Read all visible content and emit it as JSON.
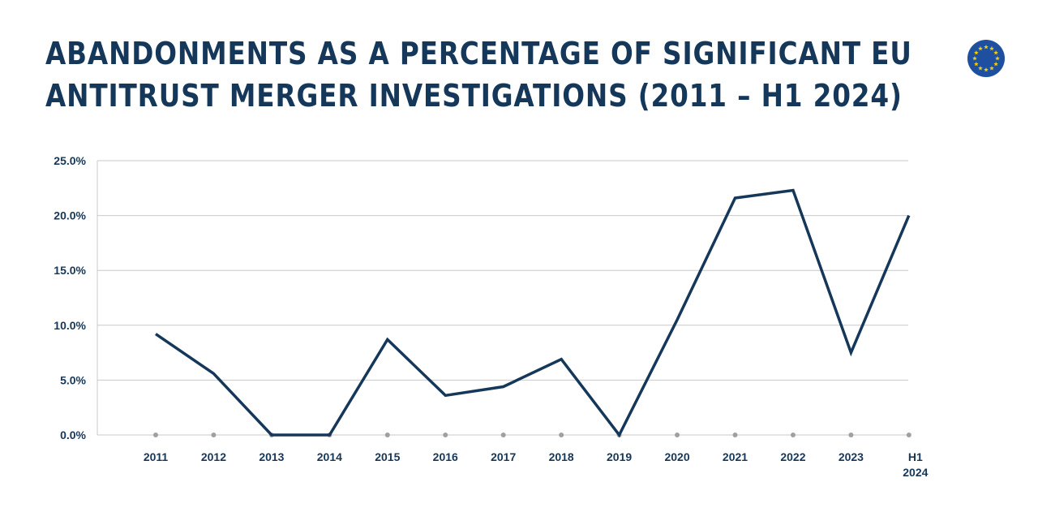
{
  "title": {
    "line1": "ABANDONMENTS AS A PERCENTAGE OF SIGNIFICANT EU",
    "line2": "ANTITRUST MERGER INVESTIGATIONS (2011 – H1 2024)"
  },
  "logo": {
    "icon": "eu-flag-icon",
    "color": "#1f4fa0",
    "star_color": "#f5d000"
  },
  "colors": {
    "line": "#15375a",
    "grid": "#c9c9c9",
    "text": "#15375a",
    "marker": "#a0a0a0"
  },
  "chart_data": {
    "type": "line",
    "categories": [
      "2011",
      "2012",
      "2013",
      "2014",
      "2015",
      "2016",
      "2017",
      "2018",
      "2019",
      "2020",
      "2021",
      "2022",
      "2023",
      "H1 2024"
    ],
    "series": [
      {
        "values": [
          9.2,
          5.6,
          0.0,
          0.0,
          8.7,
          3.6,
          4.4,
          6.9,
          0.0,
          10.5,
          21.6,
          22.3,
          7.5,
          20.0
        ]
      }
    ],
    "yticks": [
      "0.0%",
      "5.0%",
      "10.0%",
      "15.0%",
      "20.0%",
      "25.0%"
    ],
    "ylim": [
      0,
      25
    ],
    "grid": true,
    "legend": "none"
  }
}
